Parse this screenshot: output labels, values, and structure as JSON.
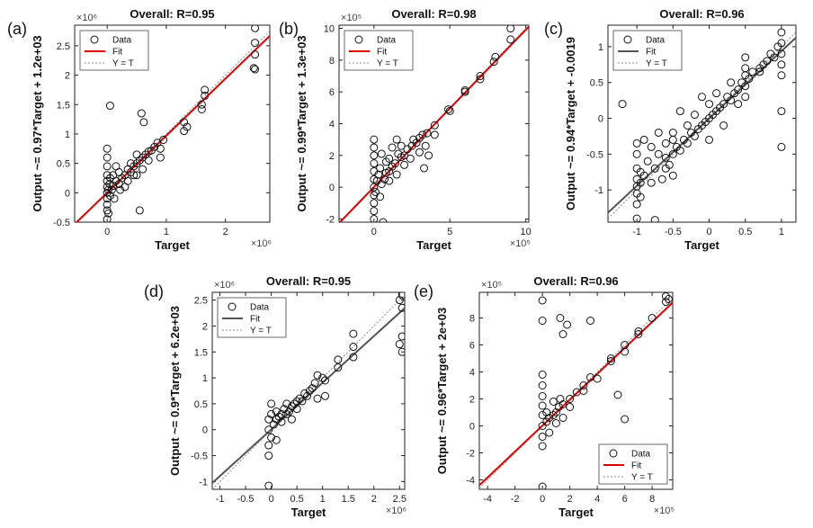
{
  "chart_data": [
    {
      "type": "scatter",
      "panel_label": "(a)",
      "title": "Overall: R=0.95",
      "xlabel": "Target",
      "ylabel": "Output ~= 0.97*Target + 1.2e+03",
      "x_exponent": "×10⁶",
      "y_exponent": "×10⁶",
      "xlim": [
        -0.55,
        2.75
      ],
      "ylim": [
        -0.5,
        2.85
      ],
      "xticks": [
        0,
        1,
        2
      ],
      "yticks": [
        -0.5,
        0,
        0.5,
        1,
        1.5,
        2,
        2.5
      ],
      "fit": {
        "slope": 0.97,
        "intercept": 0.0012
      },
      "fit_color": "#dd0000",
      "legend_position": "top-left",
      "legend": [
        "Data",
        "Fit",
        "Y = T"
      ],
      "points": [
        [
          0,
          -0.45
        ],
        [
          0,
          -0.3
        ],
        [
          0,
          -0.2
        ],
        [
          0,
          -0.1
        ],
        [
          0,
          0
        ],
        [
          0,
          0.1
        ],
        [
          0,
          0.2
        ],
        [
          0,
          0.3
        ],
        [
          0,
          0.45
        ],
        [
          0,
          0.6
        ],
        [
          0,
          0.75
        ],
        [
          0.02,
          -0.35
        ],
        [
          0.02,
          0.05
        ],
        [
          0.04,
          0.15
        ],
        [
          0.05,
          -0.05
        ],
        [
          0.05,
          0.25
        ],
        [
          0.05,
          1.48
        ],
        [
          0.08,
          0.05
        ],
        [
          0.1,
          0.12
        ],
        [
          0.1,
          0.3
        ],
        [
          0.12,
          -0.1
        ],
        [
          0.15,
          0.2
        ],
        [
          0.15,
          0.45
        ],
        [
          0.2,
          0.15
        ],
        [
          0.2,
          0.35
        ],
        [
          0.22,
          0.05
        ],
        [
          0.25,
          0.25
        ],
        [
          0.3,
          0.3
        ],
        [
          0.3,
          0.1
        ],
        [
          0.35,
          0.4
        ],
        [
          0.35,
          0.2
        ],
        [
          0.4,
          0.35
        ],
        [
          0.4,
          0.5
        ],
        [
          0.45,
          0.45
        ],
        [
          0.45,
          0.3
        ],
        [
          0.5,
          0.5
        ],
        [
          0.5,
          0.65
        ],
        [
          0.5,
          0.3
        ],
        [
          0.55,
          0.55
        ],
        [
          0.55,
          -0.3
        ],
        [
          0.58,
          1.35
        ],
        [
          0.6,
          0.6
        ],
        [
          0.6,
          0.4
        ],
        [
          0.62,
          1.2
        ],
        [
          0.65,
          0.65
        ],
        [
          0.7,
          0.7
        ],
        [
          0.7,
          0.55
        ],
        [
          0.75,
          0.72
        ],
        [
          0.8,
          0.78
        ],
        [
          0.85,
          0.85
        ],
        [
          0.9,
          0.6
        ],
        [
          0.9,
          0.75
        ],
        [
          0.95,
          0.9
        ],
        [
          1.3,
          1.2
        ],
        [
          1.3,
          1.05
        ],
        [
          1.35,
          1.12
        ],
        [
          1.6,
          1.5
        ],
        [
          1.6,
          1.42
        ],
        [
          1.65,
          1.65
        ],
        [
          1.65,
          1.75
        ],
        [
          2.5,
          2.8
        ],
        [
          2.5,
          2.55
        ],
        [
          2.5,
          2.35
        ],
        [
          2.5,
          2.1
        ],
        [
          2.48,
          2.12
        ]
      ]
    },
    {
      "type": "scatter",
      "panel_label": "(b)",
      "title": "Overall: R=0.98",
      "xlabel": "Target",
      "ylabel": "Output ~= 0.99*Target + 1.3e+03",
      "x_exponent": "×10⁵",
      "y_exponent": "×10⁵",
      "xlim": [
        -2.3,
        10.2
      ],
      "ylim": [
        -2.2,
        10.2
      ],
      "xticks": [
        0,
        5,
        10
      ],
      "yticks": [
        -2,
        0,
        2,
        4,
        6,
        8,
        10
      ],
      "fit": {
        "slope": 0.99,
        "intercept": 0.013
      },
      "fit_color": "#dd0000",
      "legend_position": "top-left",
      "legend": [
        "Data",
        "Fit",
        "Y = T"
      ],
      "points": [
        [
          0,
          -2
        ],
        [
          0,
          -1.5
        ],
        [
          0,
          -1
        ],
        [
          0,
          -0.5
        ],
        [
          0,
          0
        ],
        [
          0,
          0.5
        ],
        [
          0,
          1
        ],
        [
          0,
          1.5
        ],
        [
          0,
          2
        ],
        [
          0,
          2.5
        ],
        [
          0,
          3
        ],
        [
          0.1,
          -0.3
        ],
        [
          0.2,
          0.4
        ],
        [
          0.3,
          0.8
        ],
        [
          0.4,
          -0.6
        ],
        [
          0.4,
          1.2
        ],
        [
          0.5,
          0.2
        ],
        [
          0.5,
          2.1
        ],
        [
          0.6,
          -2.2
        ],
        [
          0.7,
          0.5
        ],
        [
          0.8,
          1.6
        ],
        [
          0.8,
          0.9
        ],
        [
          1,
          1
        ],
        [
          1,
          1.8
        ],
        [
          1,
          0.4
        ],
        [
          1.2,
          1.3
        ],
        [
          1.2,
          2.5
        ],
        [
          1.4,
          1.5
        ],
        [
          1.5,
          3
        ],
        [
          1.5,
          0.8
        ],
        [
          1.6,
          2.1
        ],
        [
          1.8,
          1.9
        ],
        [
          1.8,
          2.6
        ],
        [
          2,
          2
        ],
        [
          2,
          1.4
        ],
        [
          2.2,
          2.4
        ],
        [
          2.4,
          1.8
        ],
        [
          2.5,
          2.6
        ],
        [
          2.6,
          3
        ],
        [
          2.8,
          2.8
        ],
        [
          3,
          3.1
        ],
        [
          3,
          2.2
        ],
        [
          3.2,
          3.3
        ],
        [
          3.3,
          1.2
        ],
        [
          3.4,
          2.6
        ],
        [
          3.5,
          3.4
        ],
        [
          3.6,
          2
        ],
        [
          4,
          3.9
        ],
        [
          4,
          3.3
        ],
        [
          4.9,
          4.9
        ],
        [
          5,
          4.8
        ],
        [
          6,
          6
        ],
        [
          6,
          6.1
        ],
        [
          7,
          7
        ],
        [
          7,
          6.8
        ],
        [
          7.9,
          7.9
        ],
        [
          8,
          8.2
        ],
        [
          9,
          9.3
        ],
        [
          9,
          10
        ]
      ]
    },
    {
      "type": "scatter",
      "panel_label": "(c)",
      "title": "Overall: R=0.96",
      "xlabel": "Target",
      "ylabel": "Output ~= 0.94*Target + -0.0019",
      "x_exponent": "",
      "y_exponent": "",
      "xlim": [
        -1.4,
        1.2
      ],
      "ylim": [
        -1.45,
        1.3
      ],
      "xticks": [
        -1,
        -0.5,
        0,
        0.5,
        1
      ],
      "yticks": [
        -1,
        -0.5,
        0,
        0.5,
        1
      ],
      "fit": {
        "slope": 0.94,
        "intercept": -0.0019
      },
      "fit_color": "#555555",
      "legend_position": "top-left",
      "legend": [
        "Data",
        "Fit",
        "Y = T"
      ],
      "points": [
        [
          -1,
          -1.4
        ],
        [
          -1,
          -1.2
        ],
        [
          -1,
          -1.05
        ],
        [
          -1,
          -0.95
        ],
        [
          -1,
          -0.85
        ],
        [
          -1,
          -0.7
        ],
        [
          -1,
          -0.5
        ],
        [
          -1,
          -0.35
        ],
        [
          -0.95,
          -1.1
        ],
        [
          -0.95,
          -0.9
        ],
        [
          -0.95,
          -0.75
        ],
        [
          -0.9,
          -0.8
        ],
        [
          -0.9,
          -0.3
        ],
        [
          -0.85,
          -0.6
        ],
        [
          -0.8,
          -0.9
        ],
        [
          -0.8,
          -0.4
        ],
        [
          -0.75,
          -1.42
        ],
        [
          -0.75,
          -0.7
        ],
        [
          -0.7,
          -0.5
        ],
        [
          -0.7,
          -0.2
        ],
        [
          -0.65,
          -0.85
        ],
        [
          -0.6,
          -0.55
        ],
        [
          -0.6,
          -0.35
        ],
        [
          -0.55,
          -0.65
        ],
        [
          -0.5,
          -0.5
        ],
        [
          -0.5,
          -0.3
        ],
        [
          -0.5,
          -0.8
        ],
        [
          -0.5,
          -0.2
        ],
        [
          -0.45,
          -0.4
        ],
        [
          -0.4,
          -0.45
        ],
        [
          -0.4,
          0.1
        ],
        [
          -0.35,
          -0.3
        ],
        [
          -0.3,
          -0.35
        ],
        [
          -0.3,
          -0.1
        ],
        [
          -0.25,
          -0.2
        ],
        [
          -0.2,
          -0.25
        ],
        [
          -0.2,
          0.05
        ],
        [
          -0.15,
          -0.15
        ],
        [
          -0.1,
          -0.1
        ],
        [
          -0.1,
          0.3
        ],
        [
          -0.05,
          -0.05
        ],
        [
          0,
          0
        ],
        [
          0,
          0.2
        ],
        [
          0,
          -0.3
        ],
        [
          0.05,
          0.05
        ],
        [
          0.1,
          0.1
        ],
        [
          0.1,
          0.35
        ],
        [
          0.15,
          0.15
        ],
        [
          0.2,
          0.2
        ],
        [
          0.2,
          -0.1
        ],
        [
          0.25,
          0.3
        ],
        [
          0.3,
          0.25
        ],
        [
          0.3,
          0.5
        ],
        [
          0.35,
          0.35
        ],
        [
          0.4,
          0.4
        ],
        [
          0.4,
          0.2
        ],
        [
          0.45,
          0.5
        ],
        [
          0.5,
          0.45
        ],
        [
          0.5,
          0.3
        ],
        [
          0.5,
          0.6
        ],
        [
          0.5,
          0.7
        ],
        [
          0.5,
          0.85
        ],
        [
          0.55,
          0.55
        ],
        [
          0.6,
          0.65
        ],
        [
          0.7,
          0.7
        ],
        [
          0.75,
          0.75
        ],
        [
          0.8,
          0.8
        ],
        [
          0.85,
          0.9
        ],
        [
          0.9,
          0.85
        ],
        [
          0.95,
          1
        ],
        [
          1,
          0.6
        ],
        [
          1,
          0.75
        ],
        [
          1,
          0.9
        ],
        [
          1,
          1.05
        ],
        [
          1,
          1.2
        ],
        [
          1,
          0.1
        ],
        [
          1,
          -0.4
        ],
        [
          -1.2,
          0.2
        ],
        [
          -0.6,
          -0.7
        ],
        [
          0.7,
          0.65
        ]
      ]
    },
    {
      "type": "scatter",
      "panel_label": "(d)",
      "title": "Overall: R=0.95",
      "xlabel": "Target",
      "ylabel": "Output ~= 0.9*Target + 6.2e+03",
      "x_exponent": "×10⁶",
      "y_exponent": "×10⁶",
      "xlim": [
        -1.15,
        2.6
      ],
      "ylim": [
        -1.15,
        2.65
      ],
      "xticks": [
        -1,
        -0.5,
        0,
        0.5,
        1,
        1.5,
        2,
        2.5
      ],
      "yticks": [
        -1,
        -0.5,
        0,
        0.5,
        1,
        1.5,
        2,
        2.5
      ],
      "fit": {
        "slope": 0.9,
        "intercept": 0.0062
      },
      "fit_color": "#555555",
      "legend_position": "top-left",
      "legend": [
        "Data",
        "Fit",
        "Y = T"
      ],
      "points": [
        [
          -0.05,
          -1.08
        ],
        [
          -0.05,
          -0.5
        ],
        [
          -0.05,
          -0.3
        ],
        [
          -0.05,
          0
        ],
        [
          -0.05,
          0.2
        ],
        [
          0,
          0.3
        ],
        [
          0,
          0.5
        ],
        [
          0,
          -0.15
        ],
        [
          0.05,
          0.1
        ],
        [
          0.1,
          0.2
        ],
        [
          0.1,
          -0.2
        ],
        [
          0.1,
          0.35
        ],
        [
          0.15,
          0.25
        ],
        [
          0.2,
          0.3
        ],
        [
          0.2,
          0.15
        ],
        [
          0.25,
          0.4
        ],
        [
          0.3,
          0.3
        ],
        [
          0.3,
          0.5
        ],
        [
          0.35,
          0.35
        ],
        [
          0.4,
          0.45
        ],
        [
          0.4,
          0.2
        ],
        [
          0.45,
          0.5
        ],
        [
          0.5,
          0.55
        ],
        [
          0.5,
          0.4
        ],
        [
          0.55,
          0.6
        ],
        [
          0.6,
          0.55
        ],
        [
          0.65,
          0.7
        ],
        [
          0.7,
          0.65
        ],
        [
          0.75,
          0.75
        ],
        [
          0.8,
          0.8
        ],
        [
          0.85,
          0.9
        ],
        [
          0.9,
          1.05
        ],
        [
          0.9,
          0.6
        ],
        [
          1,
          1
        ],
        [
          1.05,
          0.95
        ],
        [
          1.05,
          0.65
        ],
        [
          1.3,
          1.2
        ],
        [
          1.3,
          1.35
        ],
        [
          1.6,
          1.4
        ],
        [
          1.6,
          1.6
        ],
        [
          1.6,
          1.85
        ],
        [
          2.55,
          2.6
        ],
        [
          2.55,
          2.35
        ],
        [
          2.5,
          2.5
        ],
        [
          2.55,
          1.8
        ],
        [
          2.5,
          1.65
        ],
        [
          2.55,
          1.5
        ]
      ]
    },
    {
      "type": "scatter",
      "panel_label": "(e)",
      "title": "Overall: R=0.96",
      "xlabel": "Target",
      "ylabel": "Output ~= 0.96*Target + 2e+03",
      "x_exponent": "×10⁵",
      "y_exponent": "×10⁵",
      "xlim": [
        -4.6,
        9.5
      ],
      "ylim": [
        -4.7,
        9.9
      ],
      "xticks": [
        -4,
        -2,
        0,
        2,
        4,
        6,
        8
      ],
      "yticks": [
        -4,
        -2,
        0,
        2,
        4,
        6,
        8
      ],
      "fit": {
        "slope": 0.96,
        "intercept": 0.02
      },
      "fit_color": "#dd0000",
      "legend_position": "bottom-right",
      "legend": [
        "Data",
        "Fit",
        "Y = T"
      ],
      "points": [
        [
          0,
          -4.5
        ],
        [
          0,
          -1.5
        ],
        [
          0,
          -0.8
        ],
        [
          0,
          0
        ],
        [
          0,
          0.8
        ],
        [
          0,
          1.5
        ],
        [
          0,
          2.2
        ],
        [
          0,
          3
        ],
        [
          0,
          3.8
        ],
        [
          0,
          9.3
        ],
        [
          0,
          7.8
        ],
        [
          0.3,
          0.3
        ],
        [
          0.3,
          1
        ],
        [
          0.5,
          -0.5
        ],
        [
          0.5,
          0.6
        ],
        [
          0.8,
          0.8
        ],
        [
          0.8,
          1.8
        ],
        [
          1,
          0.2
        ],
        [
          1,
          1
        ],
        [
          1.2,
          1.4
        ],
        [
          1.3,
          2
        ],
        [
          1.5,
          1.6
        ],
        [
          1.5,
          0.6
        ],
        [
          1.3,
          8
        ],
        [
          1.5,
          6.8
        ],
        [
          1.8,
          7.5
        ],
        [
          2,
          2
        ],
        [
          2,
          1.4
        ],
        [
          2.5,
          2.5
        ],
        [
          3,
          3
        ],
        [
          3,
          2.6
        ],
        [
          3.5,
          3.6
        ],
        [
          3.5,
          7.8
        ],
        [
          4,
          3.5
        ],
        [
          5,
          5
        ],
        [
          5,
          4.8
        ],
        [
          5.5,
          2.3
        ],
        [
          6,
          6
        ],
        [
          6,
          0.5
        ],
        [
          6,
          5.5
        ],
        [
          7,
          7
        ],
        [
          7,
          6.8
        ],
        [
          8,
          8
        ],
        [
          9,
          9.6
        ],
        [
          9,
          9.2
        ],
        [
          9.2,
          9.4
        ]
      ]
    }
  ]
}
